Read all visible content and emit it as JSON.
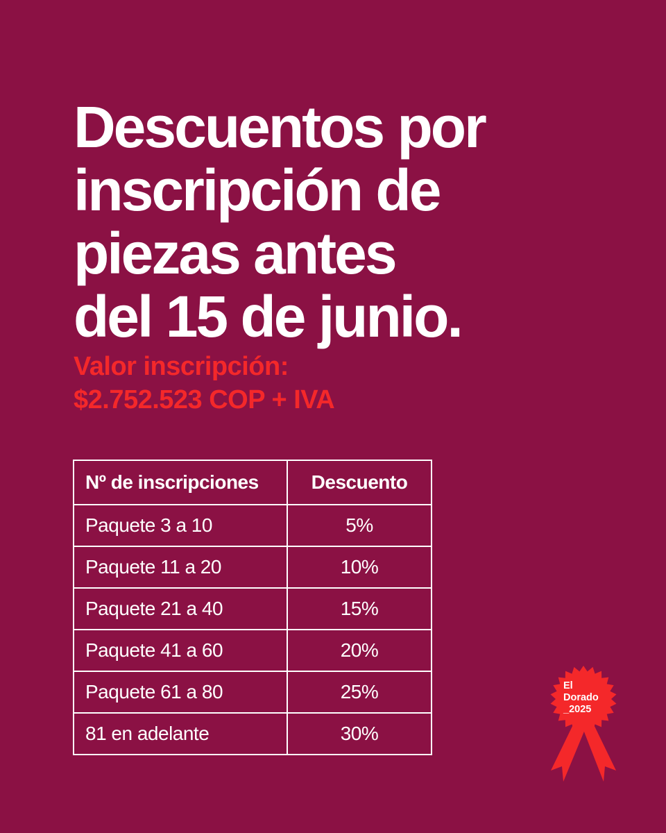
{
  "title_lines": [
    "Descuentos por",
    "inscripción de",
    "piezas antes",
    "del 15 de junio."
  ],
  "price_lines": [
    "Valor inscripción:",
    "$2.752.523 COP + IVA"
  ],
  "table": {
    "headers": [
      "Nº de inscripciones",
      "Descuento"
    ],
    "rows": [
      {
        "label": "Paquete 3 a 10",
        "value": "5%"
      },
      {
        "label": "Paquete 11 a 20",
        "value": "10%"
      },
      {
        "label": "Paquete 21 a 40",
        "value": "15%"
      },
      {
        "label": "Paquete 41 a 60",
        "value": "20%"
      },
      {
        "label": "Paquete 61 a 80",
        "value": "25%"
      },
      {
        "label": "81 en adelante",
        "value": "30%"
      }
    ]
  },
  "badge": {
    "line1": "El",
    "line2": "Dorado",
    "line3": "_2025",
    "color": "#f4282a"
  },
  "colors": {
    "background": "#8b1144",
    "accent": "#f4282a",
    "text": "#ffffff"
  }
}
